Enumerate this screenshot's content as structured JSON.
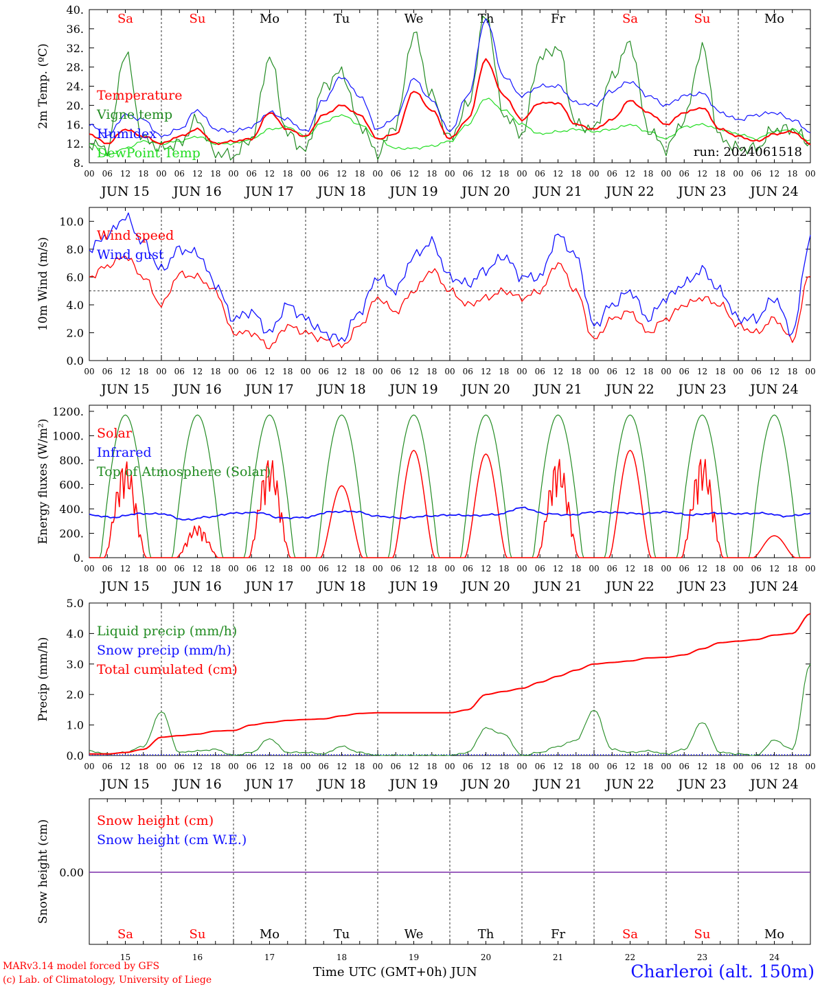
{
  "run_label": "run: 2024061518",
  "days": [
    {
      "abbr": "Sa",
      "weekend": true,
      "date": "JUN 15",
      "num": "15"
    },
    {
      "abbr": "Su",
      "weekend": true,
      "date": "JUN 16",
      "num": "16"
    },
    {
      "abbr": "Mo",
      "weekend": false,
      "date": "JUN 17",
      "num": "17"
    },
    {
      "abbr": "Tu",
      "weekend": false,
      "date": "JUN 18",
      "num": "18"
    },
    {
      "abbr": "We",
      "weekend": false,
      "date": "JUN 19",
      "num": "19"
    },
    {
      "abbr": "Th",
      "weekend": false,
      "date": "JUN 20",
      "num": "20"
    },
    {
      "abbr": "Fr",
      "weekend": false,
      "date": "JUN 21",
      "num": "21"
    },
    {
      "abbr": "Sa",
      "weekend": true,
      "date": "JUN 22",
      "num": "22"
    },
    {
      "abbr": "Su",
      "weekend": true,
      "date": "JUN 23",
      "num": "23"
    },
    {
      "abbr": "Mo",
      "weekend": false,
      "date": "JUN 24",
      "num": "24"
    }
  ],
  "hour_ticks": [
    "00",
    "06",
    "12",
    "18"
  ],
  "footer": {
    "model": "MARv3.14 model forced by GFS",
    "lab": "(c) Lab. of Climatology, University of Liege",
    "axis": "Time UTC (GMT+0h) JUN",
    "station": "Charleroi (alt. 150m)"
  },
  "colors": {
    "red": "#ff0000",
    "green": "#228b22",
    "blue": "#1010ff",
    "lime": "#22dd22",
    "purple": "#7a2ca8"
  },
  "chart_data": [
    {
      "type": "line",
      "ylabel": "2m Temp. (ºC)",
      "ylim": [
        8,
        40
      ],
      "yticks": [
        "8.",
        "12.",
        "16.",
        "20.",
        "24.",
        "28.",
        "32.",
        "36.",
        "40."
      ],
      "x": [
        0,
        6,
        12,
        18,
        24,
        30,
        36,
        42,
        48,
        54,
        60,
        66,
        72,
        78,
        84,
        90,
        96,
        102,
        108,
        114,
        120,
        126,
        132,
        138,
        144,
        150,
        156,
        162,
        168,
        174,
        180,
        186,
        192,
        198,
        204,
        210,
        216,
        222,
        228,
        234,
        240
      ],
      "series": [
        {
          "name": "Temperature",
          "color": "#ff0000",
          "values": [
            14,
            12,
            15,
            13.5,
            12,
            13.5,
            15,
            12,
            12.5,
            13,
            18.5,
            15,
            13.5,
            18,
            20,
            18,
            13,
            14,
            23,
            19,
            13,
            17,
            29.5,
            22,
            17,
            20.5,
            20.5,
            16,
            15,
            17,
            21,
            18.5,
            16,
            18.5,
            19.5,
            15,
            13.5,
            12.5,
            14,
            14.5,
            12
          ]
        },
        {
          "name": "Vigne temp",
          "color": "#228b22",
          "values": [
            12,
            11,
            31,
            13,
            11,
            12,
            17,
            10,
            9.5,
            13,
            30,
            14,
            10.5,
            24,
            27,
            16,
            10,
            16,
            35,
            22,
            13,
            20,
            39,
            18,
            14,
            30,
            32,
            16,
            15,
            26,
            33,
            15,
            11,
            17,
            32,
            13,
            11,
            11,
            15,
            15,
            12
          ]
        },
        {
          "name": "Humidex",
          "color": "#1010ff",
          "values": [
            16,
            13.5,
            18,
            17,
            13.5,
            15,
            19,
            15,
            14.5,
            15.5,
            18.5,
            17,
            14.5,
            21,
            26,
            22,
            15,
            17.5,
            25.5,
            21,
            14.5,
            22,
            38,
            26,
            22,
            24,
            24,
            20.5,
            20,
            23,
            25,
            22,
            20,
            22,
            22.5,
            18.5,
            17,
            18,
            18.5,
            17,
            14.5
          ]
        },
        {
          "name": "DewPoint Temp",
          "color": "#22dd22",
          "values": [
            12,
            9.5,
            11,
            12.5,
            12,
            12.5,
            13.5,
            12,
            12,
            13,
            15,
            15.5,
            13.5,
            16.5,
            18,
            16,
            13,
            11,
            11,
            11.5,
            12.5,
            16,
            21.5,
            19,
            16,
            14,
            14.5,
            15,
            14.5,
            15,
            16,
            14.5,
            13,
            15.5,
            16,
            15,
            14,
            13,
            14.5,
            15,
            12.5
          ]
        }
      ]
    },
    {
      "type": "line",
      "ylabel": "10m Wind (m/s)",
      "ylim": [
        0,
        11
      ],
      "yticks": [
        "0.0",
        "2.0",
        "4.0",
        "6.0",
        "8.0",
        "10.0"
      ],
      "reference_line": 5.0,
      "x": [
        0,
        6,
        12,
        18,
        24,
        30,
        36,
        42,
        48,
        54,
        60,
        66,
        72,
        78,
        84,
        90,
        96,
        102,
        108,
        114,
        120,
        126,
        132,
        138,
        144,
        150,
        156,
        162,
        168,
        174,
        180,
        186,
        192,
        198,
        204,
        210,
        216,
        222,
        228,
        234,
        240
      ],
      "series": [
        {
          "name": "Wind speed",
          "color": "#ff0000",
          "values": [
            6,
            6.8,
            7.5,
            6,
            4,
            6.2,
            6,
            5,
            2,
            2,
            1,
            2.5,
            2,
            1.5,
            1,
            2.5,
            4.5,
            3.5,
            5,
            6.5,
            5,
            4,
            4.5,
            5,
            4.5,
            5,
            7,
            5,
            1.5,
            3,
            3.5,
            2,
            3,
            4,
            4.5,
            4,
            2.5,
            2,
            3,
            1.5,
            6.3
          ]
        },
        {
          "name": "Wind gust",
          "color": "#1010ff",
          "values": [
            8,
            9,
            10.3,
            8.5,
            6.5,
            8,
            7.7,
            5.5,
            3,
            3.5,
            2,
            4,
            3,
            2,
            1.5,
            3.5,
            6,
            5,
            7.5,
            8.5,
            6,
            5.5,
            6.5,
            7.5,
            6,
            6,
            9,
            7.5,
            2.5,
            4,
            5,
            3,
            4.5,
            5.5,
            6.5,
            5,
            3,
            3,
            4.5,
            2,
            8.8
          ]
        }
      ]
    },
    {
      "type": "line",
      "ylabel": "Energy fluxes (W/m²)",
      "ylim": [
        0,
        1250
      ],
      "yticks": [
        "0.",
        "200.",
        "400.",
        "600.",
        "800.",
        "1000.",
        "1200."
      ],
      "toa_peak": 1170,
      "solar_peaks": [
        800,
        270,
        830,
        590,
        880,
        850,
        820,
        880,
        840,
        180
      ],
      "series": [
        {
          "name": "Solar",
          "color": "#ff0000"
        },
        {
          "name": "Infrared",
          "color": "#1010ff",
          "values": [
            350,
            330,
            360,
            360,
            310,
            335,
            365,
            370,
            325,
            330,
            375,
            380,
            340,
            325,
            340,
            350,
            345,
            355,
            410,
            360,
            350,
            375,
            370,
            360,
            375,
            350,
            365,
            360,
            365,
            340,
            360
          ]
        },
        {
          "name": "Top of Atmosphere (Solar)",
          "color": "#228b22"
        }
      ]
    },
    {
      "type": "line",
      "ylabel": "Precip (mm/h)",
      "ylim": [
        0,
        5
      ],
      "yticks": [
        "0.0",
        "1.0",
        "2.0",
        "3.0",
        "4.0",
        "5.0"
      ],
      "x": [
        0,
        6,
        12,
        18,
        24,
        30,
        36,
        42,
        48,
        54,
        60,
        66,
        72,
        78,
        84,
        90,
        96,
        102,
        108,
        114,
        120,
        126,
        132,
        138,
        144,
        150,
        156,
        162,
        168,
        174,
        180,
        186,
        192,
        198,
        204,
        210,
        216,
        222,
        228,
        234,
        240
      ],
      "series": [
        {
          "name": "Liquid precip (mm/h)",
          "color": "#228b22",
          "values": [
            0.15,
            0.05,
            0.1,
            0.3,
            1.45,
            0.1,
            0.15,
            0.2,
            0,
            0.1,
            0.55,
            0.1,
            0.1,
            0.05,
            0.3,
            0.1,
            0,
            0,
            0,
            0,
            0,
            0.1,
            0.9,
            0.7,
            0,
            0.1,
            0.3,
            0.5,
            1.5,
            0.2,
            0.1,
            0.15,
            0.05,
            0.2,
            1.1,
            0.1,
            0.05,
            0,
            0.5,
            0.2,
            3.0
          ]
        },
        {
          "name": "Snow precip (mm/h)",
          "color": "#1010ff",
          "values": [
            0,
            0,
            0,
            0,
            0,
            0,
            0,
            0,
            0,
            0,
            0,
            0,
            0,
            0,
            0,
            0,
            0,
            0,
            0,
            0,
            0,
            0,
            0,
            0,
            0,
            0,
            0,
            0,
            0,
            0,
            0,
            0,
            0,
            0,
            0,
            0,
            0,
            0,
            0,
            0,
            0
          ]
        },
        {
          "name": "Total cumulated (cm)",
          "color": "#ff0000",
          "values": [
            0.05,
            0.05,
            0.1,
            0.2,
            0.6,
            0.65,
            0.7,
            0.8,
            0.82,
            1.0,
            1.08,
            1.15,
            1.18,
            1.2,
            1.3,
            1.38,
            1.4,
            1.4,
            1.4,
            1.4,
            1.4,
            1.5,
            2.0,
            2.1,
            2.2,
            2.4,
            2.6,
            2.8,
            3.0,
            3.05,
            3.1,
            3.2,
            3.22,
            3.3,
            3.5,
            3.7,
            3.75,
            3.8,
            3.95,
            4.0,
            4.65
          ]
        }
      ]
    },
    {
      "type": "line",
      "ylabel": "Snow height (cm)",
      "yticks": [
        "0.00"
      ],
      "series": [
        {
          "name": "Snow height (cm)",
          "color": "#ff0000",
          "values": [
            0,
            0
          ]
        },
        {
          "name": "Snow height (cm W.E.)",
          "color": "#1010ff",
          "values": [
            0,
            0
          ]
        }
      ]
    }
  ]
}
